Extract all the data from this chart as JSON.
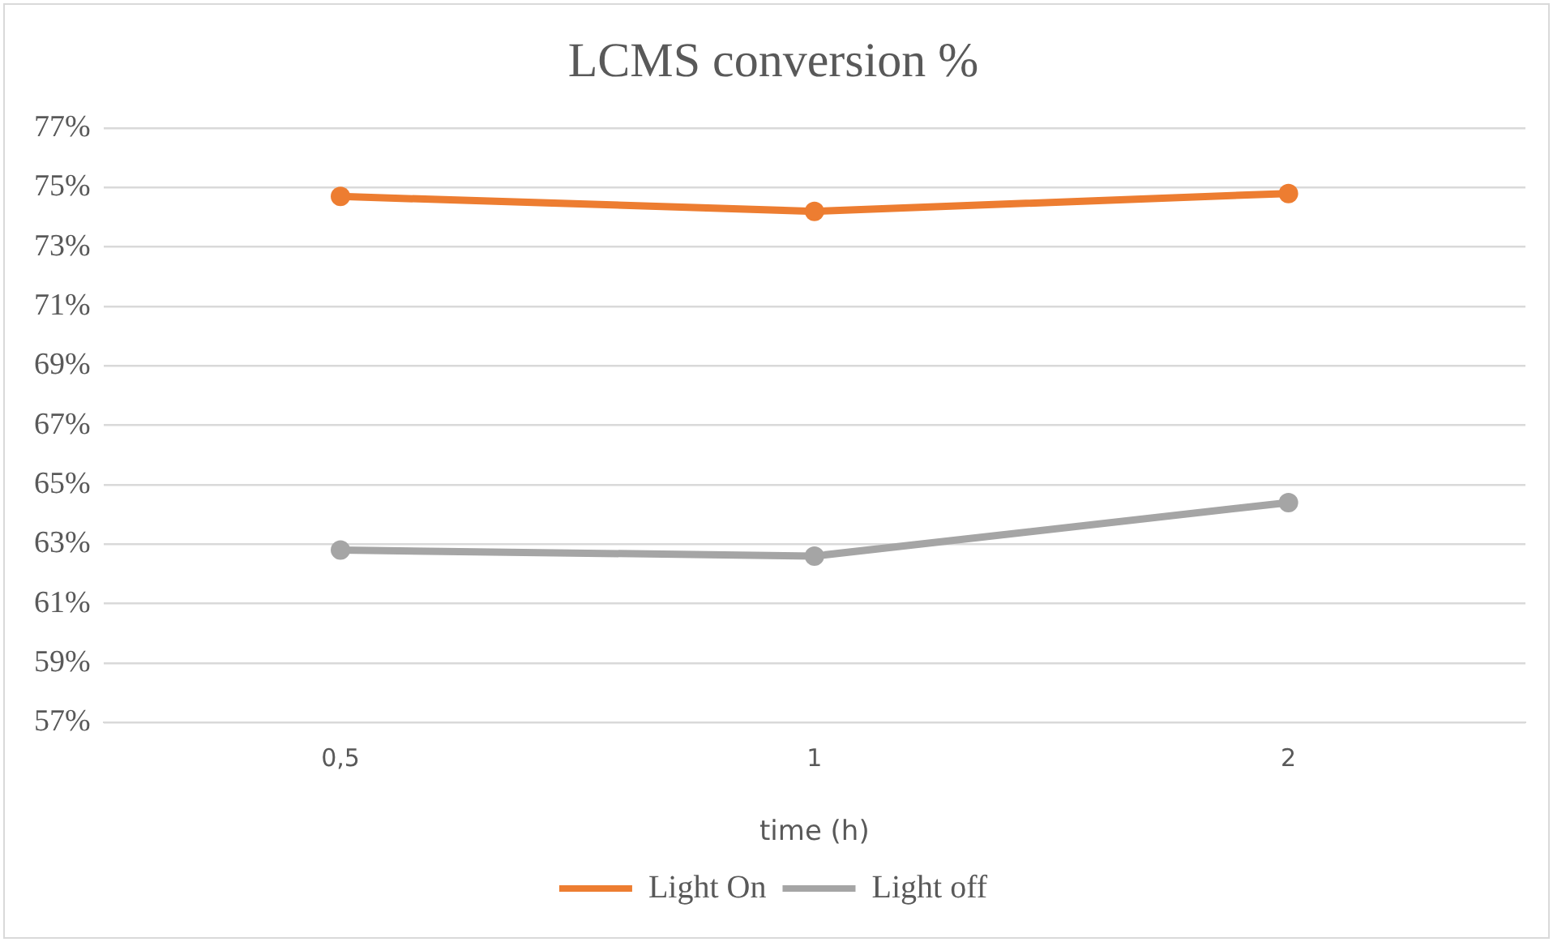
{
  "chart_data": {
    "type": "line",
    "title": "LCMS conversion %",
    "xlabel": "time (h)",
    "categories": [
      "0,5",
      "1",
      "2"
    ],
    "series": [
      {
        "name": "Light On",
        "color": "#ed7d31",
        "values": [
          74.7,
          74.2,
          74.8
        ]
      },
      {
        "name": "Light off",
        "color": "#a5a5a5",
        "values": [
          62.8,
          62.6,
          64.4
        ]
      }
    ],
    "ylim": [
      57,
      77
    ],
    "yticks": [
      {
        "value": 57,
        "label": "57%"
      },
      {
        "value": 59,
        "label": "59%"
      },
      {
        "value": 61,
        "label": "61%"
      },
      {
        "value": 63,
        "label": "63%"
      },
      {
        "value": 65,
        "label": "65%"
      },
      {
        "value": 67,
        "label": "67%"
      },
      {
        "value": 69,
        "label": "69%"
      },
      {
        "value": 71,
        "label": "71%"
      },
      {
        "value": 73,
        "label": "73%"
      },
      {
        "value": 75,
        "label": "75%"
      },
      {
        "value": 77,
        "label": "77%"
      }
    ],
    "grid": "y",
    "legend": "bottom",
    "marker": "circle",
    "line_style": "solid"
  }
}
